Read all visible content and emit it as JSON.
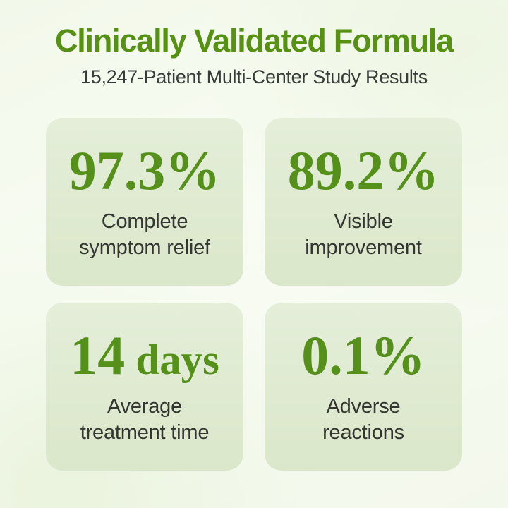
{
  "colors": {
    "accent_green": "#569114",
    "value_green": "#54901a",
    "label_text": "#333631",
    "card_background": "#e0ead3",
    "page_background": "#f5faf0"
  },
  "header": {
    "title": "Clinically Validated Formula",
    "subtitle": "15,247-Patient Multi-Center Study Results"
  },
  "stats": [
    {
      "value": "97.3%",
      "unit": "",
      "label": "Complete symptom relief"
    },
    {
      "value": "89.2%",
      "unit": "",
      "label": "Visible improvement"
    },
    {
      "value": "14",
      "unit": " days",
      "label": "Average treatment time"
    },
    {
      "value": "0.1%",
      "unit": "",
      "label": "Adverse reactions"
    }
  ]
}
